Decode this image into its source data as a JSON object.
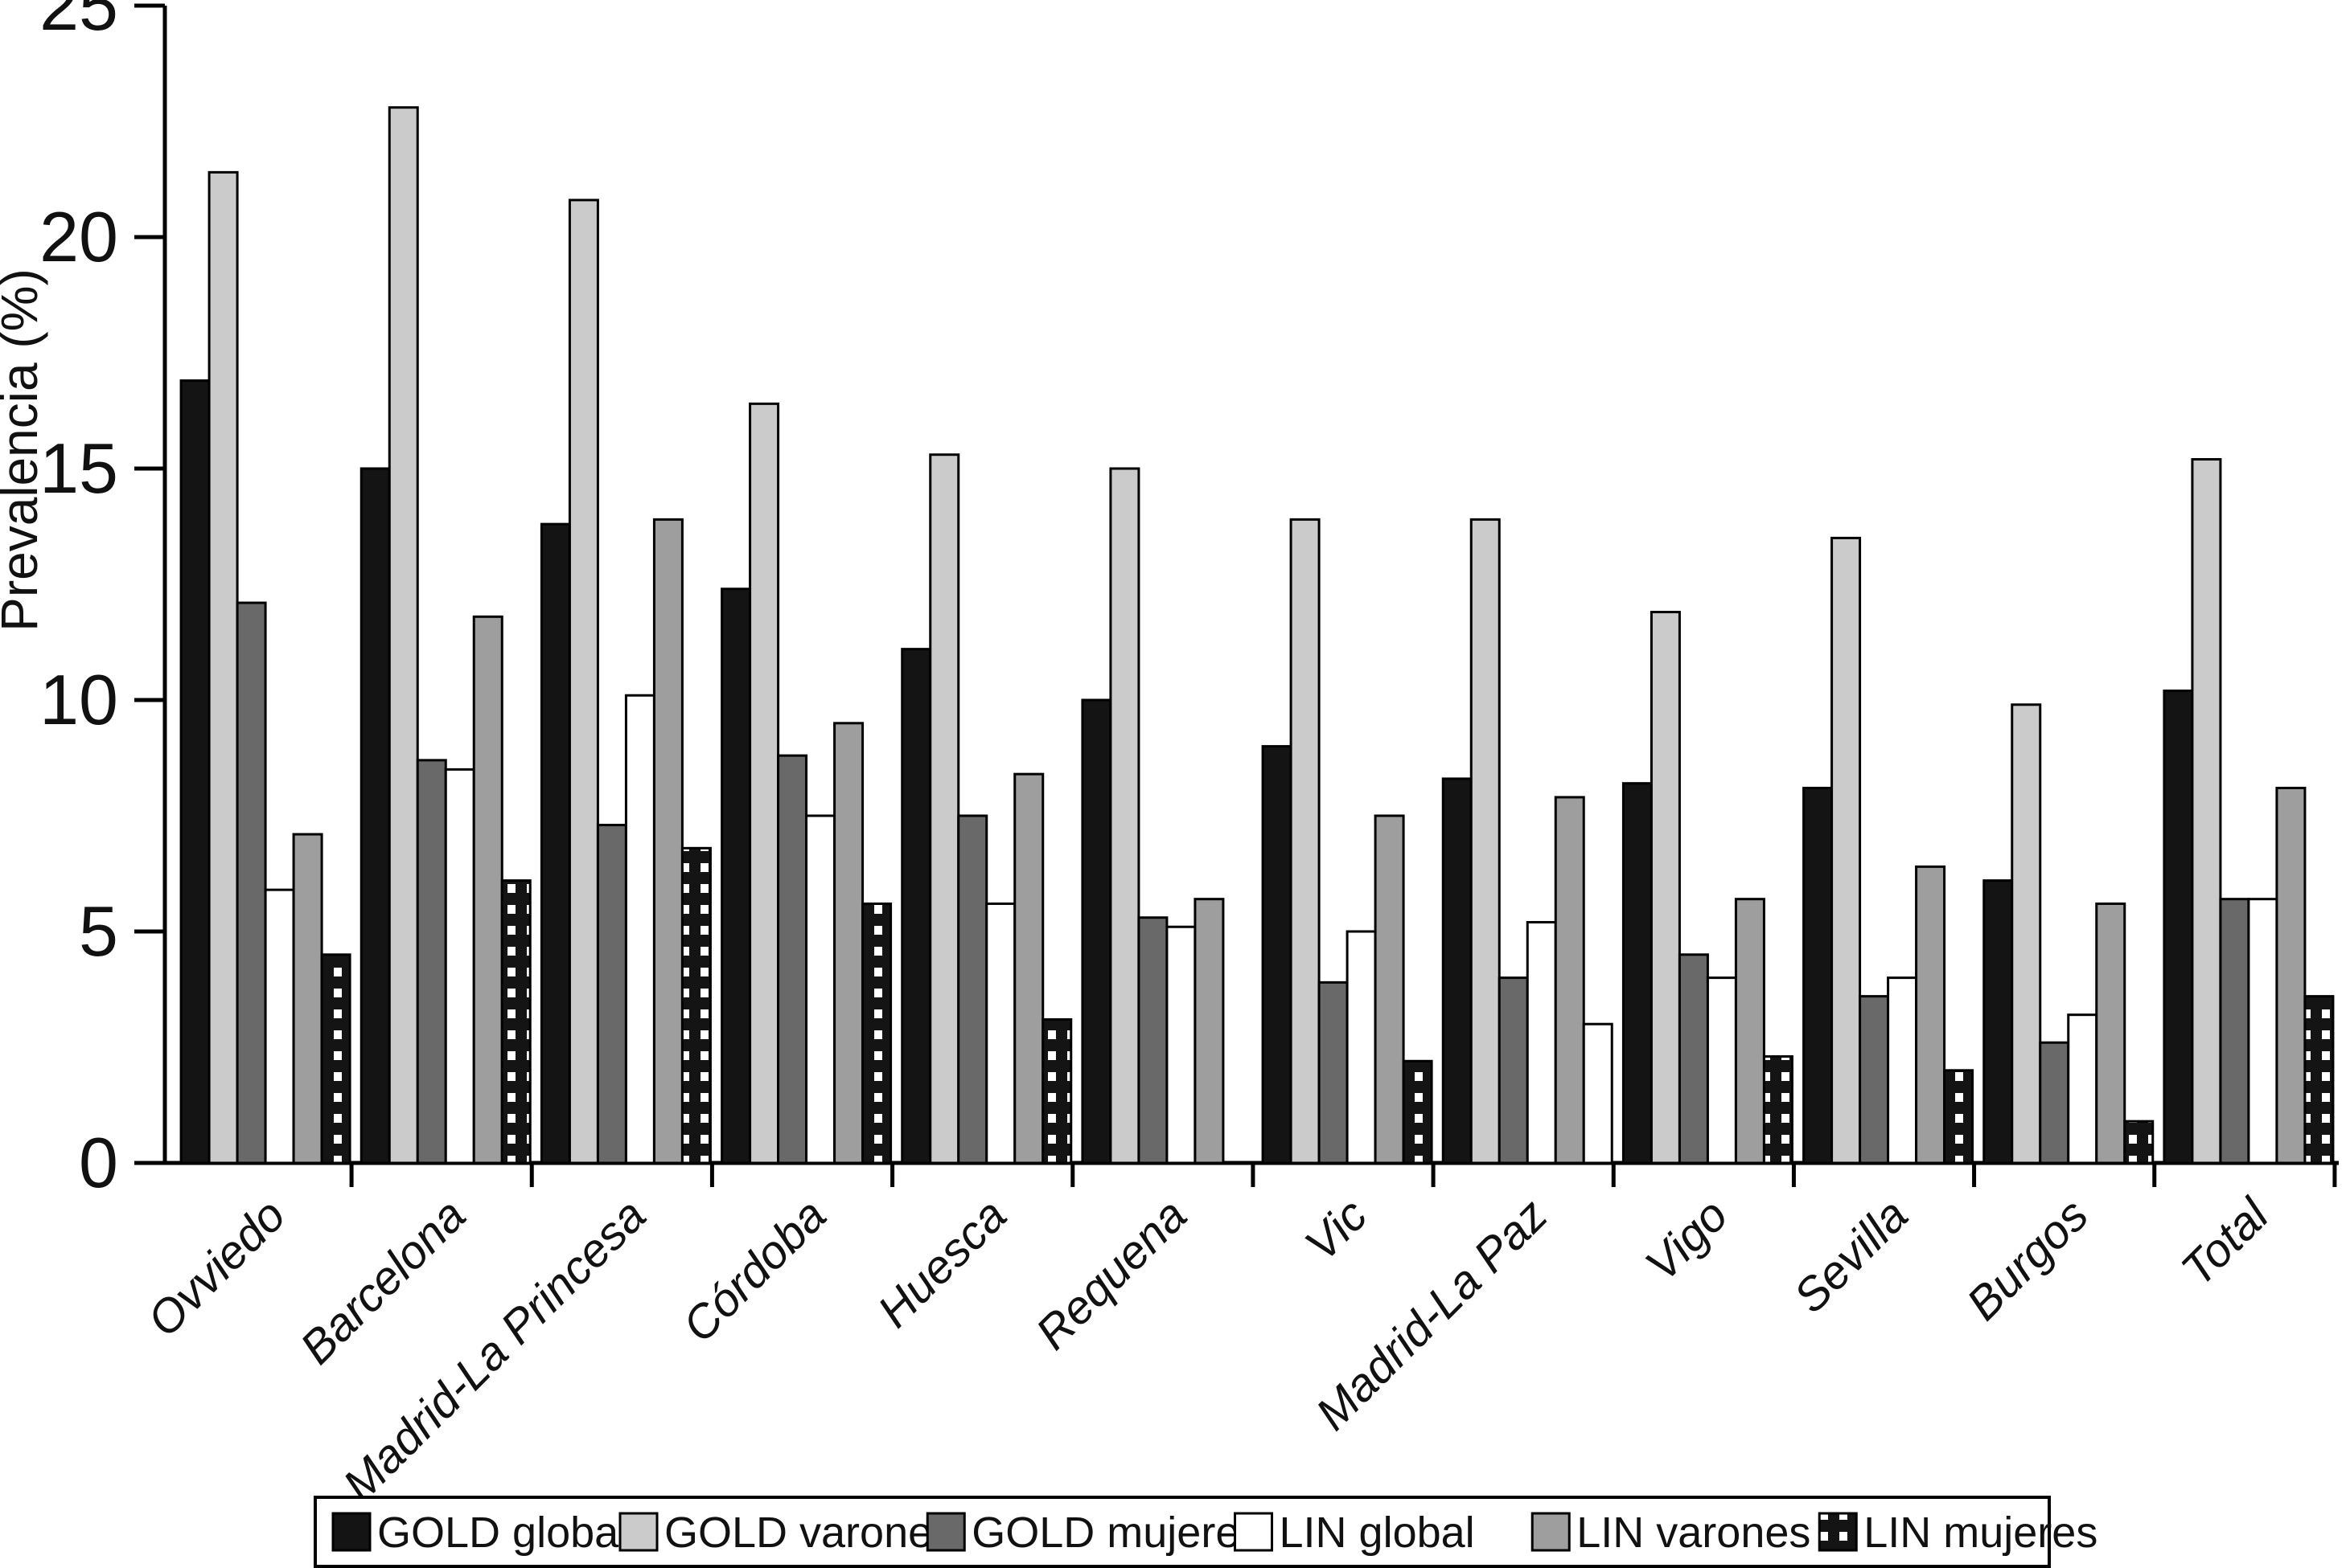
{
  "chart_data": {
    "type": "bar",
    "title": "",
    "ylabel": "Prevalencia (%)",
    "xlabel": "",
    "ylim": [
      0,
      25
    ],
    "yticks": [
      0,
      5,
      10,
      15,
      20,
      25
    ],
    "grid": false,
    "legend_position": "bottom-box",
    "bar_outline_color": "#000000",
    "categories": [
      "Ovviedo",
      "Barcelona",
      "Madrid-La Princesa",
      "Córdoba",
      "Huesca",
      "Requena",
      "Vic",
      "Madrid-La Paz",
      "Vigo",
      "Sevilla",
      "Burgos",
      "Total"
    ],
    "series": [
      {
        "name": "GOLD global",
        "color": "#141414",
        "pattern": "solid",
        "values": [
          16.9,
          15.0,
          13.8,
          12.4,
          11.1,
          10.0,
          9.0,
          8.3,
          8.2,
          8.1,
          6.1,
          10.2
        ]
      },
      {
        "name": "GOLD varones",
        "color": "#cbcbcb",
        "pattern": "solid",
        "values": [
          21.4,
          22.8,
          20.8,
          16.4,
          15.3,
          15.0,
          13.9,
          13.9,
          11.9,
          13.5,
          9.9,
          15.2
        ]
      },
      {
        "name": "GOLD mujeres",
        "color": "#696969",
        "pattern": "solid",
        "values": [
          12.1,
          8.7,
          7.3,
          8.8,
          7.5,
          5.3,
          3.9,
          4.0,
          4.5,
          3.6,
          2.6,
          5.7
        ]
      },
      {
        "name": "LIN global",
        "color": "#ffffff",
        "pattern": "solid",
        "values": [
          5.9,
          8.5,
          10.1,
          7.5,
          5.6,
          5.1,
          5.0,
          5.2,
          4.0,
          4.0,
          3.2,
          5.7
        ]
      },
      {
        "name": "LIN varones",
        "color": "#9e9e9e",
        "pattern": "solid",
        "values": [
          7.1,
          11.8,
          13.9,
          9.5,
          8.4,
          5.7,
          7.5,
          7.9,
          5.7,
          6.4,
          5.6,
          8.1
        ]
      },
      {
        "name": "LIN mujeres",
        "color": "#141414",
        "pattern": "white-dots",
        "values": [
          4.5,
          6.1,
          6.8,
          5.6,
          3.1,
          null,
          2.2,
          3.0,
          2.3,
          2.0,
          0.9,
          3.6
        ],
        "fill_overrides": {
          "7": "#ffffff"
        },
        "notes": "Requena bar absent; Madrid-La Paz bar drawn as plain white"
      }
    ]
  }
}
